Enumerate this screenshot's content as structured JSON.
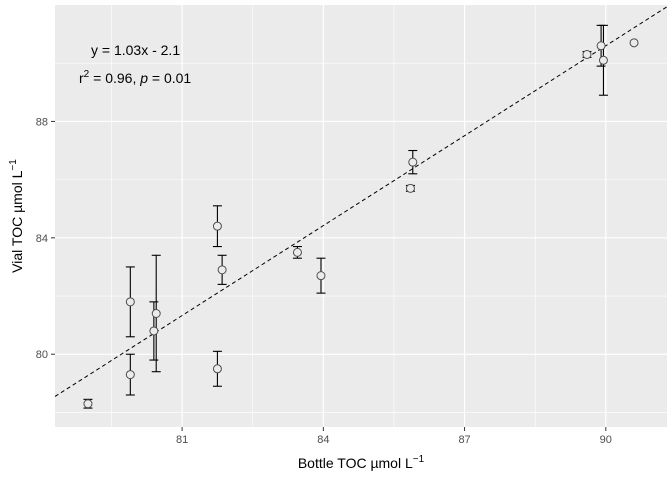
{
  "chart_data": {
    "type": "scatter",
    "xlabel": "Bottle TOC µmol L",
    "xlabel_sup": "−1",
    "ylabel": "Vial TOC µmol L",
    "ylabel_sup": "−1",
    "xlim": [
      78.3,
      91.3
    ],
    "ylim": [
      77.5,
      92.0
    ],
    "x_ticks": [
      81,
      84,
      87,
      90
    ],
    "y_ticks": [
      80,
      84,
      88
    ],
    "x_minor_ticks": [
      79.5,
      82.5,
      85.5,
      88.5
    ],
    "y_minor_ticks": [
      78,
      82,
      86,
      90
    ],
    "grid": true,
    "points": [
      {
        "x": 79.0,
        "y": 78.3,
        "err": 0.15
      },
      {
        "x": 79.9,
        "y": 79.3,
        "err": 0.7
      },
      {
        "x": 79.9,
        "y": 81.8,
        "err": 1.2
      },
      {
        "x": 80.4,
        "y": 80.8,
        "err": 1.0
      },
      {
        "x": 80.45,
        "y": 81.4,
        "err": 2.0
      },
      {
        "x": 81.75,
        "y": 79.5,
        "err": 0.6
      },
      {
        "x": 81.75,
        "y": 84.4,
        "err": 0.7
      },
      {
        "x": 81.85,
        "y": 82.9,
        "err": 0.5
      },
      {
        "x": 83.45,
        "y": 83.5,
        "err": 0.2
      },
      {
        "x": 83.95,
        "y": 82.7,
        "err": 0.6
      },
      {
        "x": 85.85,
        "y": 85.7,
        "err": 0.1
      },
      {
        "x": 85.9,
        "y": 86.6,
        "err": 0.4
      },
      {
        "x": 89.6,
        "y": 90.3,
        "err": 0.1
      },
      {
        "x": 89.9,
        "y": 90.6,
        "err": 0.7
      },
      {
        "x": 89.95,
        "y": 90.1,
        "err": 1.2
      },
      {
        "x": 90.6,
        "y": 90.7,
        "err": 0
      }
    ],
    "fit": {
      "slope": 1.03,
      "intercept": -2.1
    },
    "annotation": {
      "equation": "y = 1.03x - 2.1",
      "r2_prefix": "r",
      "r2_sup": "2",
      "r2_mid": " = 0.96, ",
      "p_label": "p",
      "p_value": " = 0.01"
    }
  }
}
